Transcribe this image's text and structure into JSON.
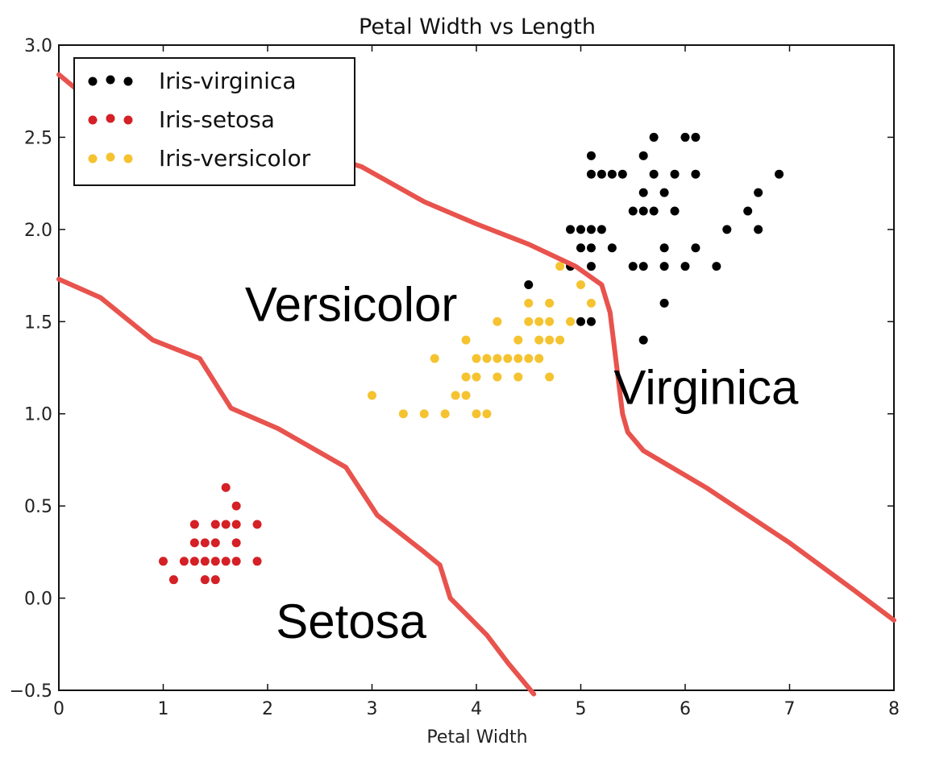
{
  "chart_data": {
    "type": "scatter",
    "title": "Petal Width vs Length",
    "xlabel": "Petal Width",
    "ylabel": "",
    "xlim": [
      0,
      8
    ],
    "ylim": [
      -0.5,
      3.0
    ],
    "xticks": [
      "0",
      "1",
      "2",
      "3",
      "4",
      "5",
      "6",
      "7",
      "8"
    ],
    "yticks": [
      "−0.5",
      "0.0",
      "0.5",
      "1.0",
      "1.5",
      "2.0",
      "2.5",
      "3.0"
    ],
    "grid": false,
    "legend_position": "top-left",
    "series": [
      {
        "name": "Iris-virginica",
        "color": "#000000",
        "points": [
          [
            5.1,
            2.4
          ],
          [
            5.1,
            2.3
          ],
          [
            5.2,
            2.3
          ],
          [
            5.3,
            2.3
          ],
          [
            5.4,
            2.3
          ],
          [
            5.7,
            2.5
          ],
          [
            5.6,
            2.4
          ],
          [
            5.7,
            2.3
          ],
          [
            5.9,
            2.3
          ],
          [
            6.0,
            2.5
          ],
          [
            6.1,
            2.5
          ],
          [
            6.1,
            2.3
          ],
          [
            5.6,
            2.2
          ],
          [
            5.8,
            2.2
          ],
          [
            5.5,
            2.1
          ],
          [
            5.6,
            2.1
          ],
          [
            5.7,
            2.1
          ],
          [
            5.9,
            2.1
          ],
          [
            6.6,
            2.1
          ],
          [
            6.7,
            2.2
          ],
          [
            6.9,
            2.3
          ],
          [
            4.9,
            2.0
          ],
          [
            5.0,
            2.0
          ],
          [
            5.1,
            2.0
          ],
          [
            5.2,
            2.0
          ],
          [
            6.4,
            2.0
          ],
          [
            6.7,
            2.0
          ],
          [
            5.0,
            1.9
          ],
          [
            5.1,
            1.9
          ],
          [
            5.3,
            1.9
          ],
          [
            5.8,
            1.9
          ],
          [
            6.1,
            1.9
          ],
          [
            4.9,
            1.8
          ],
          [
            5.1,
            1.8
          ],
          [
            5.5,
            1.8
          ],
          [
            5.6,
            1.8
          ],
          [
            5.8,
            1.8
          ],
          [
            6.0,
            1.8
          ],
          [
            6.3,
            1.8
          ],
          [
            4.5,
            1.7
          ],
          [
            5.8,
            1.6
          ],
          [
            5.0,
            1.5
          ],
          [
            5.1,
            1.5
          ],
          [
            5.6,
            1.4
          ]
        ]
      },
      {
        "name": "Iris-setosa",
        "color": "#d42026",
        "points": [
          [
            1.6,
            0.6
          ],
          [
            1.7,
            0.5
          ],
          [
            1.3,
            0.4
          ],
          [
            1.5,
            0.4
          ],
          [
            1.6,
            0.4
          ],
          [
            1.7,
            0.4
          ],
          [
            1.9,
            0.4
          ],
          [
            1.3,
            0.3
          ],
          [
            1.4,
            0.3
          ],
          [
            1.5,
            0.3
          ],
          [
            1.7,
            0.3
          ],
          [
            1.0,
            0.2
          ],
          [
            1.2,
            0.2
          ],
          [
            1.3,
            0.2
          ],
          [
            1.4,
            0.2
          ],
          [
            1.5,
            0.2
          ],
          [
            1.6,
            0.2
          ],
          [
            1.7,
            0.2
          ],
          [
            1.9,
            0.2
          ],
          [
            1.1,
            0.1
          ],
          [
            1.4,
            0.1
          ],
          [
            1.5,
            0.1
          ]
        ]
      },
      {
        "name": "Iris-versicolor",
        "color": "#f5c330",
        "points": [
          [
            4.8,
            1.8
          ],
          [
            5.0,
            1.7
          ],
          [
            4.5,
            1.6
          ],
          [
            4.7,
            1.6
          ],
          [
            5.1,
            1.6
          ],
          [
            4.2,
            1.5
          ],
          [
            4.5,
            1.5
          ],
          [
            4.6,
            1.5
          ],
          [
            4.7,
            1.5
          ],
          [
            4.9,
            1.5
          ],
          [
            3.9,
            1.4
          ],
          [
            4.4,
            1.4
          ],
          [
            4.6,
            1.4
          ],
          [
            4.7,
            1.4
          ],
          [
            4.8,
            1.4
          ],
          [
            3.6,
            1.3
          ],
          [
            4.0,
            1.3
          ],
          [
            4.1,
            1.3
          ],
          [
            4.2,
            1.3
          ],
          [
            4.3,
            1.3
          ],
          [
            4.4,
            1.3
          ],
          [
            4.5,
            1.3
          ],
          [
            4.6,
            1.3
          ],
          [
            3.9,
            1.2
          ],
          [
            4.0,
            1.2
          ],
          [
            4.2,
            1.2
          ],
          [
            4.4,
            1.2
          ],
          [
            4.7,
            1.2
          ],
          [
            3.8,
            1.1
          ],
          [
            3.9,
            1.1
          ],
          [
            3.0,
            1.1
          ],
          [
            3.3,
            1.0
          ],
          [
            3.5,
            1.0
          ],
          [
            3.7,
            1.0
          ],
          [
            4.0,
            1.0
          ],
          [
            4.1,
            1.0
          ]
        ]
      }
    ],
    "boundaries": [
      {
        "color": "#e8534d",
        "points": [
          [
            0.0,
            1.73
          ],
          [
            0.4,
            1.63
          ],
          [
            0.9,
            1.4
          ],
          [
            1.35,
            1.3
          ],
          [
            1.65,
            1.03
          ],
          [
            2.1,
            0.92
          ],
          [
            2.75,
            0.71
          ],
          [
            3.05,
            0.45
          ],
          [
            3.5,
            0.25
          ],
          [
            3.65,
            0.18
          ],
          [
            3.75,
            0.0
          ],
          [
            4.1,
            -0.2
          ],
          [
            4.3,
            -0.35
          ],
          [
            4.55,
            -0.52
          ]
        ]
      },
      {
        "color": "#e8534d",
        "points": [
          [
            0.0,
            2.84
          ],
          [
            0.3,
            2.7
          ],
          [
            1.0,
            2.6
          ],
          [
            2.0,
            2.5
          ],
          [
            2.9,
            2.34
          ],
          [
            3.5,
            2.15
          ],
          [
            4.0,
            2.03
          ],
          [
            4.5,
            1.92
          ],
          [
            4.95,
            1.8
          ],
          [
            5.2,
            1.7
          ],
          [
            5.28,
            1.55
          ],
          [
            5.4,
            1.0
          ],
          [
            5.45,
            0.9
          ],
          [
            5.6,
            0.8
          ],
          [
            6.2,
            0.6
          ],
          [
            7.0,
            0.3
          ],
          [
            7.6,
            0.05
          ],
          [
            8.0,
            -0.12
          ]
        ]
      }
    ],
    "annotations": [
      {
        "text": "Versicolor",
        "x": 2.8,
        "y": 1.6
      },
      {
        "text": "Virginica",
        "x": 6.2,
        "y": 1.15
      },
      {
        "text": "Setosa",
        "x": 2.8,
        "y": -0.12
      }
    ]
  }
}
